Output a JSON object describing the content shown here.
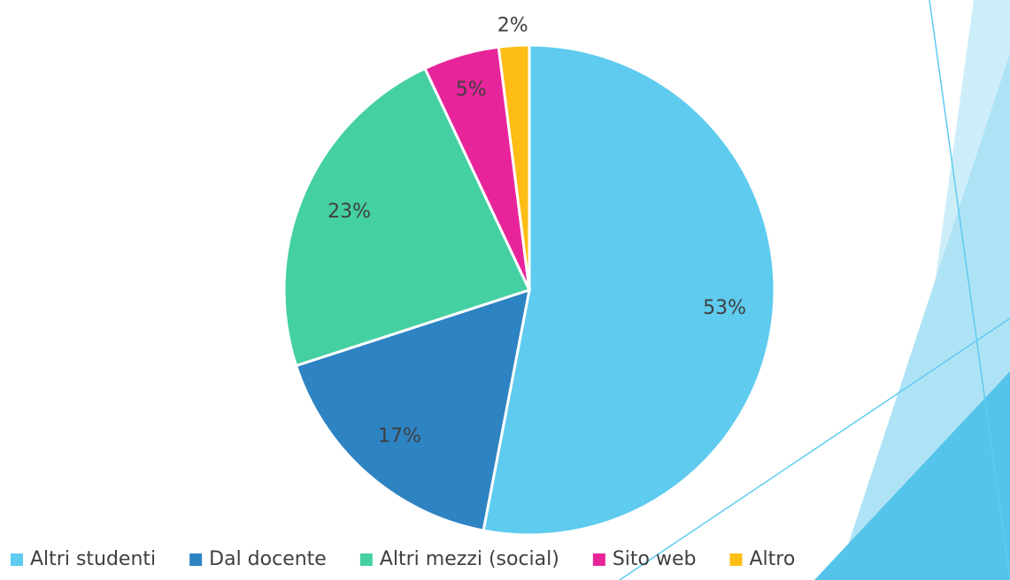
{
  "chart_data": {
    "type": "pie",
    "categories": [
      "Altri studenti",
      "Dal docente",
      "Altri mezzi (social)",
      "Sito web",
      "Altro"
    ],
    "values": [
      53,
      17,
      23,
      5,
      2
    ],
    "value_labels": [
      "53%",
      "17%",
      "23%",
      "5%",
      "2%"
    ],
    "colors": [
      "#5ecbef",
      "#2e83c3",
      "#44d0a2",
      "#e8249b",
      "#fdbd14"
    ],
    "legend": "bottom"
  }
}
